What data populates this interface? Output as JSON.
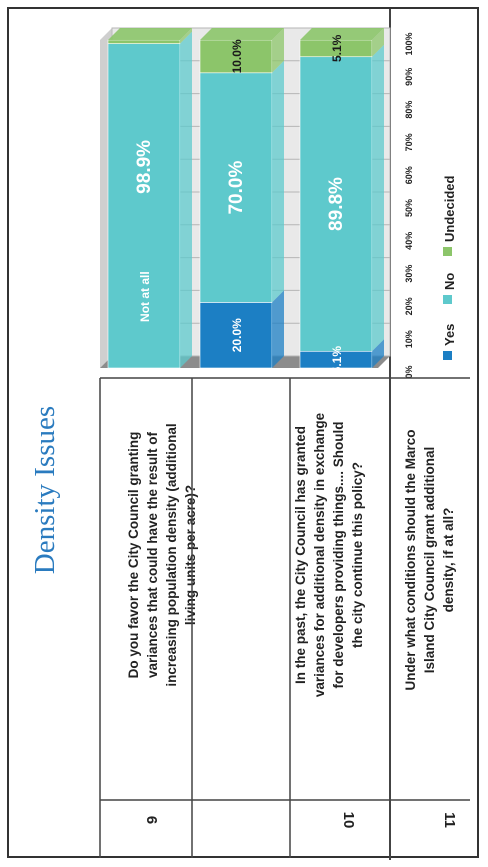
{
  "title": "Density Issues",
  "questions": [
    {
      "number": "11",
      "text": "Under what conditions should the Marco Island City Council grant additional density, if at all?"
    },
    {
      "number": "10",
      "text": "In the past, the City Council has granted variances for additional density in exchange for developers providing things.... Should the city continue this policy?"
    },
    {
      "number": "9",
      "text": "Do you favor the City Council granting variances that could have the result of increasing population density (additional living units per acre)?"
    }
  ],
  "chart_data": {
    "type": "bar",
    "stacked": true,
    "orientation": "horizontal",
    "categories": [
      "11",
      "10",
      "9"
    ],
    "series": [
      {
        "name": "Yes",
        "color": "#1c7fc4",
        "values": [
          0,
          20.0,
          5.1
        ]
      },
      {
        "name": "No",
        "color": "#5ec9cc",
        "values": [
          98.9,
          70.0,
          89.8
        ]
      },
      {
        "name": "Undecided",
        "color": "#8cc56a",
        "values": [
          1.1,
          10.0,
          5.1
        ]
      }
    ],
    "data_labels": [
      {
        "category": "11",
        "series": "No",
        "text": "98.9%",
        "note": "Not at all"
      },
      {
        "category": "10",
        "series": "Yes",
        "text": "20.0%"
      },
      {
        "category": "10",
        "series": "No",
        "text": "70.0%"
      },
      {
        "category": "10",
        "series": "Undecided",
        "text": "10.0%"
      },
      {
        "category": "9",
        "series": "Yes",
        "text": "5.1%"
      },
      {
        "category": "9",
        "series": "No",
        "text": "89.8%"
      },
      {
        "category": "9",
        "series": "Undecided",
        "text": "5.1%"
      }
    ],
    "x_ticks": [
      "0%",
      "10%",
      "20%",
      "30%",
      "40%",
      "50%",
      "60%",
      "70%",
      "80%",
      "90%",
      "100%"
    ],
    "xlim": [
      0,
      100
    ],
    "grid": true,
    "legend_position": "bottom"
  }
}
